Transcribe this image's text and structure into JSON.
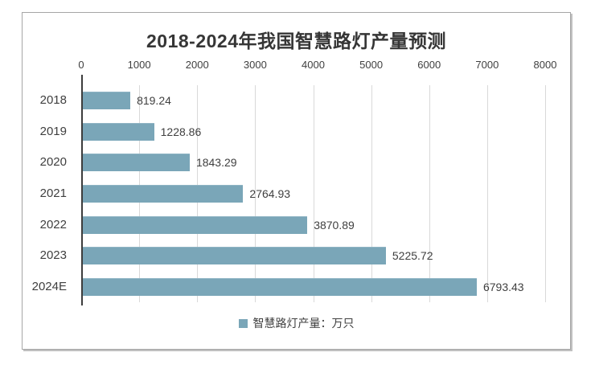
{
  "chart_data": {
    "type": "bar",
    "orientation": "horizontal",
    "title": "2018-2024年我国智慧路灯产量预测",
    "categories": [
      "2018",
      "2019",
      "2020",
      "2021",
      "2022",
      "2023",
      "2024E"
    ],
    "values": [
      819.24,
      1228.86,
      1843.29,
      2764.93,
      3870.89,
      5225.72,
      6793.43
    ],
    "value_labels": [
      "819.24",
      "1228.86",
      "1843.29",
      "2764.93",
      "3870.89",
      "5225.72",
      "6793.43"
    ],
    "xlim": [
      0,
      8000
    ],
    "x_tick_labels": [
      "0",
      "1000",
      "2000",
      "3000",
      "4000",
      "5000",
      "6000",
      "7000",
      "8000"
    ],
    "axis_position": "top",
    "grid": true,
    "legend": {
      "label": "智慧路灯产量：万只",
      "position": "bottom"
    },
    "colors": {
      "bar": "#7aa6b8",
      "legend_marker": "#7aa6b8",
      "grid": "#d9d9d9",
      "axis": "#3d3d3d",
      "text": "#3f3f3f",
      "title": "#363636",
      "frame_border": "#a6a6a6",
      "background": "#ffffff"
    }
  }
}
